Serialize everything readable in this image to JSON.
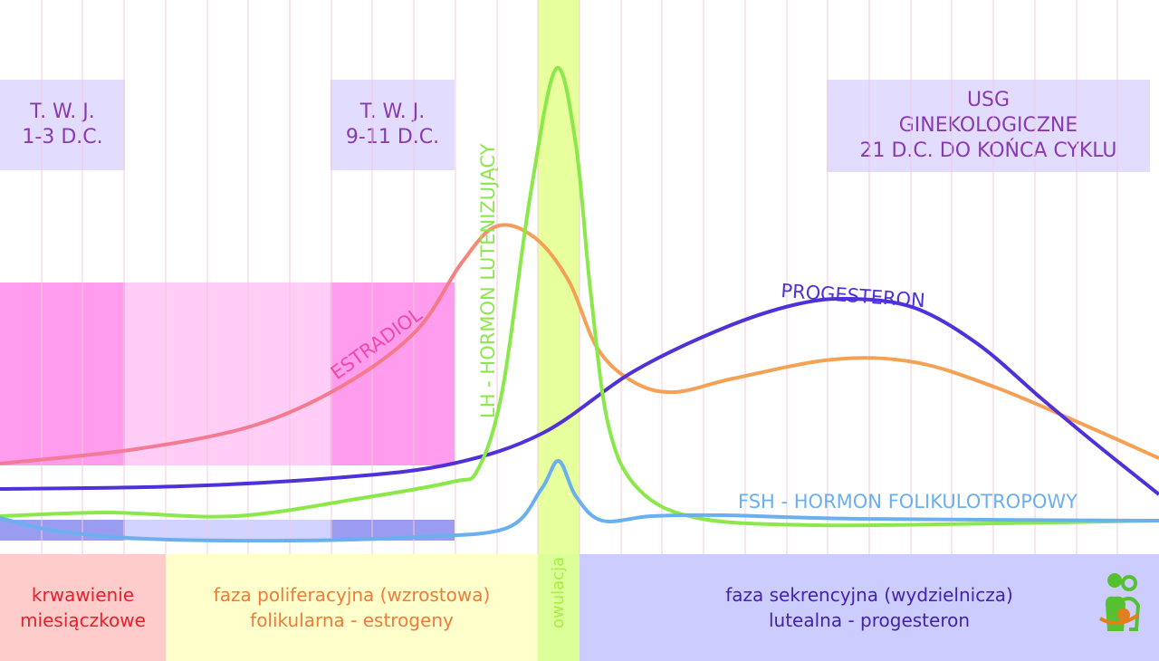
{
  "top_boxes": [
    {
      "line1": "T. W. J.",
      "line2": "1-3 D.C."
    },
    {
      "line1": "T. W. J.",
      "line2": "9-11 D.C."
    },
    {
      "line1": "USG",
      "line2": "GINEKOLOGICZNE",
      "line3": "21 D.C. DO KOŃCA CYKLU"
    }
  ],
  "curve_labels": {
    "estradiol": "ESTRADIOL",
    "lh": "LH - HORMON LUTENIZUJĄCY",
    "progesteron": "PROGESTERON",
    "fsh": "FSH - HORMON FOLIKULOTROPOWY"
  },
  "phases": [
    {
      "line1": "krwawienie",
      "line2": "miesiączkowe",
      "color": "#e8202a",
      "bg": "#ffcccc"
    },
    {
      "line1": "faza poliferacyjna (wzrostowa)",
      "line2": "folikularna - estrogeny",
      "color": "#f07a3a",
      "bg": "#ffffcc"
    },
    {
      "line1": "owulacja",
      "color": "#a8ee44",
      "bg": "#ddff99"
    },
    {
      "line1": "faza sekrencyjna (wydzielnicza)",
      "line2": "lutealna - progesteron",
      "color": "#4422aa",
      "bg": "#ccccff"
    }
  ],
  "colors": {
    "estradiol": "#f3a255",
    "lh": "#8ae84a",
    "progesteron": "#5030d8",
    "fsh": "#6ab0ee"
  },
  "logo": "family-logo-icon"
}
